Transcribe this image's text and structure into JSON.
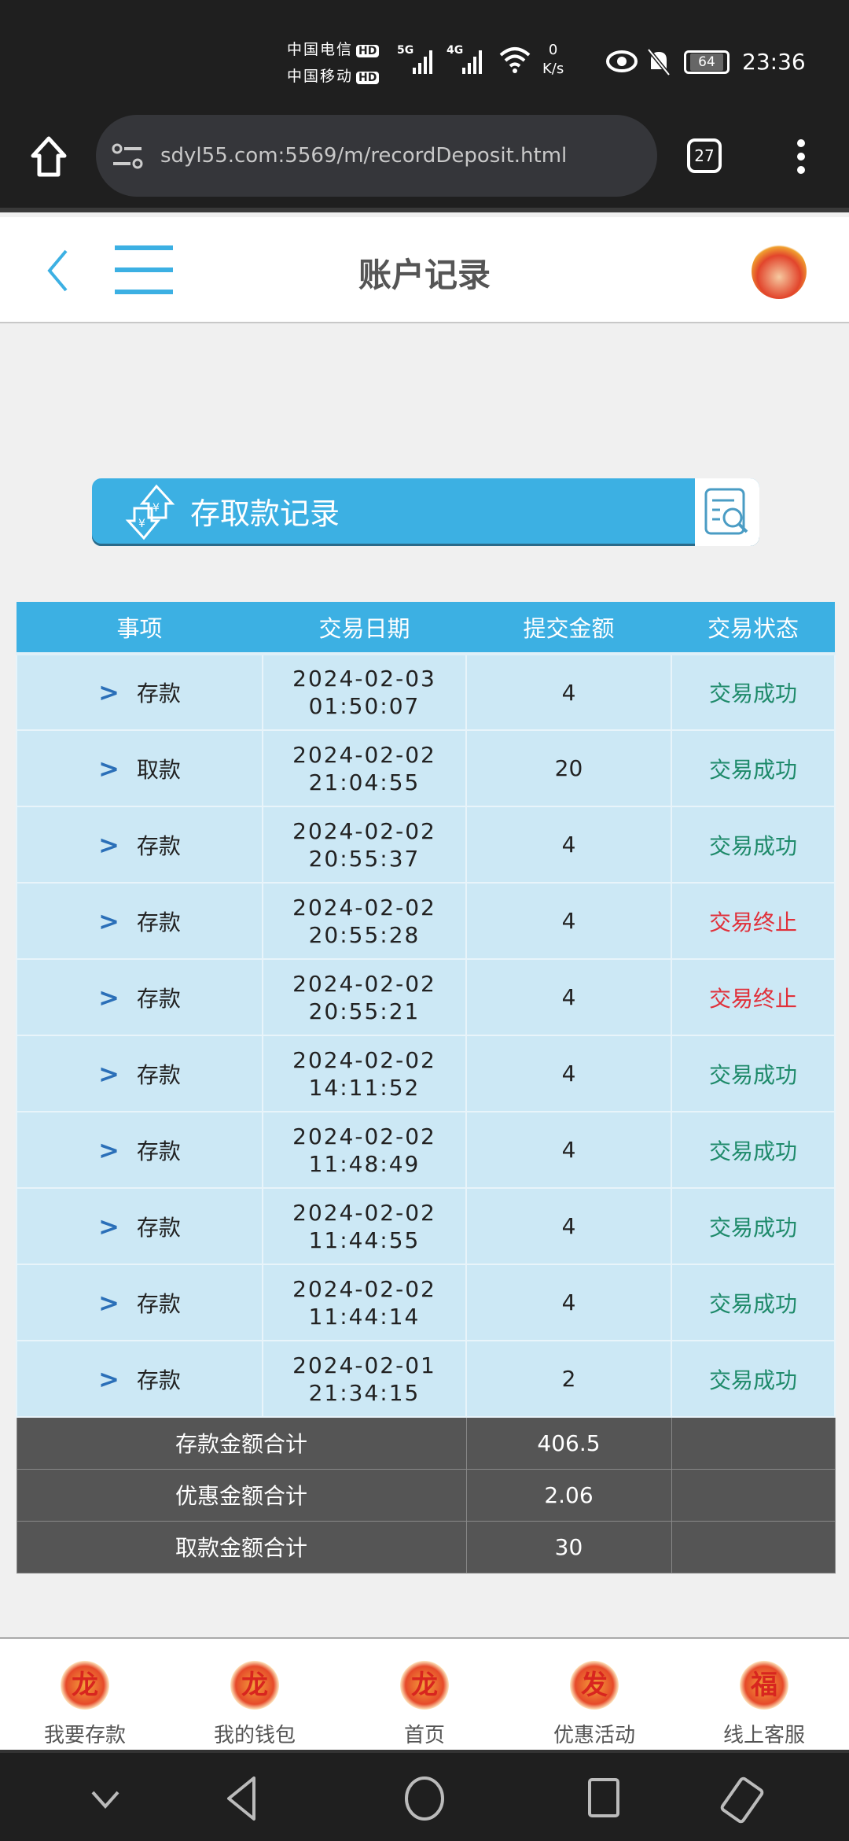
{
  "status_bar": {
    "carrier1": "中国电信",
    "carrier2": "中国移动",
    "hd": "HD",
    "net1": "5G",
    "net2": "4G",
    "speed_value": "0",
    "speed_unit": "K/s",
    "battery": "64",
    "time": "23:36"
  },
  "browser": {
    "url": "sdyl55.com:5569/m/recordDeposit.html",
    "tab_count": "27"
  },
  "header": {
    "title": "账户记录"
  },
  "banner": {
    "title": "存取款记录"
  },
  "table": {
    "columns": [
      "事项",
      "交易日期",
      "提交金额",
      "交易状态"
    ],
    "rows": [
      {
        "type": "存款",
        "date": "2024-02-03",
        "time": "01:50:07",
        "amount": "4",
        "status": "交易成功",
        "ok": true
      },
      {
        "type": "取款",
        "date": "2024-02-02",
        "time": "21:04:55",
        "amount": "20",
        "status": "交易成功",
        "ok": true
      },
      {
        "type": "存款",
        "date": "2024-02-02",
        "time": "20:55:37",
        "amount": "4",
        "status": "交易成功",
        "ok": true
      },
      {
        "type": "存款",
        "date": "2024-02-02",
        "time": "20:55:28",
        "amount": "4",
        "status": "交易终止",
        "ok": false
      },
      {
        "type": "存款",
        "date": "2024-02-02",
        "time": "20:55:21",
        "amount": "4",
        "status": "交易终止",
        "ok": false
      },
      {
        "type": "存款",
        "date": "2024-02-02",
        "time": "14:11:52",
        "amount": "4",
        "status": "交易成功",
        "ok": true
      },
      {
        "type": "存款",
        "date": "2024-02-02",
        "time": "11:48:49",
        "amount": "4",
        "status": "交易成功",
        "ok": true
      },
      {
        "type": "存款",
        "date": "2024-02-02",
        "time": "11:44:55",
        "amount": "4",
        "status": "交易成功",
        "ok": true
      },
      {
        "type": "存款",
        "date": "2024-02-02",
        "time": "11:44:14",
        "amount": "4",
        "status": "交易成功",
        "ok": true
      },
      {
        "type": "存款",
        "date": "2024-02-01",
        "time": "21:34:15",
        "amount": "2",
        "status": "交易成功",
        "ok": true
      }
    ],
    "totals": [
      {
        "label": "存款金额合计",
        "value": "406.5"
      },
      {
        "label": "优惠金额合计",
        "value": "2.06"
      },
      {
        "label": "取款金额合计",
        "value": "30"
      }
    ]
  },
  "bottom_nav": [
    {
      "label": "我要存款",
      "icon": "dragon-deposit-icon",
      "glyph": "龙"
    },
    {
      "label": "我的钱包",
      "icon": "dragon-wallet-icon",
      "glyph": "龙"
    },
    {
      "label": "首页",
      "icon": "dragon-home-icon",
      "glyph": "龙"
    },
    {
      "label": "优惠活动",
      "icon": "fa-promo-icon",
      "glyph": "发"
    },
    {
      "label": "线上客服",
      "icon": "fu-service-icon",
      "glyph": "福"
    }
  ],
  "colors": {
    "accent": "#3cb0e3",
    "row_bg": "#cce8f5",
    "success": "#1e8a6a",
    "failed": "#e0303a",
    "totals_bg": "#555555"
  }
}
